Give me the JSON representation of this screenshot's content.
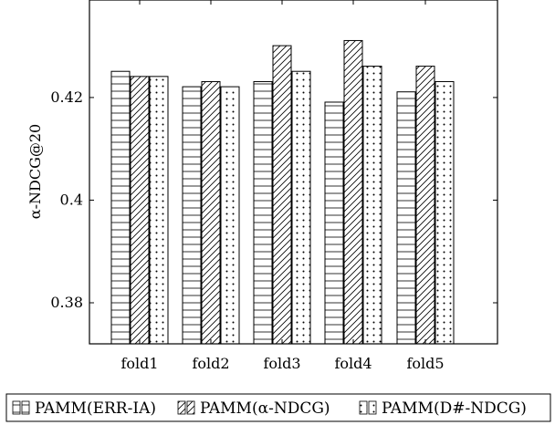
{
  "chart_data": {
    "type": "bar",
    "title": "",
    "xlabel": "",
    "ylabel": "α-NDCG@20",
    "categories": [
      "fold1",
      "fold2",
      "fold3",
      "fold4",
      "fold5"
    ],
    "series": [
      {
        "name": "PAMM(ERR-IA)",
        "pattern": "horizontal-lines",
        "values": [
          0.4251,
          0.4221,
          0.4231,
          0.4191,
          0.4211
        ]
      },
      {
        "name": "PAMM(α-NDCG)",
        "pattern": "diagonal-lines",
        "values": [
          0.4241,
          0.4231,
          0.4301,
          0.4311,
          0.4261
        ]
      },
      {
        "name": "PAMM(D#-NDCG)",
        "pattern": "dots",
        "values": [
          0.4241,
          0.4221,
          0.4251,
          0.4261,
          0.4231
        ]
      }
    ],
    "ylim": [
      0.372,
      0.439
    ],
    "yticks": [
      0.38,
      0.4,
      0.42
    ],
    "ytick_labels": [
      "0.38",
      "0.4",
      "0.42"
    ],
    "grid": false,
    "legend_position": "bottom"
  }
}
